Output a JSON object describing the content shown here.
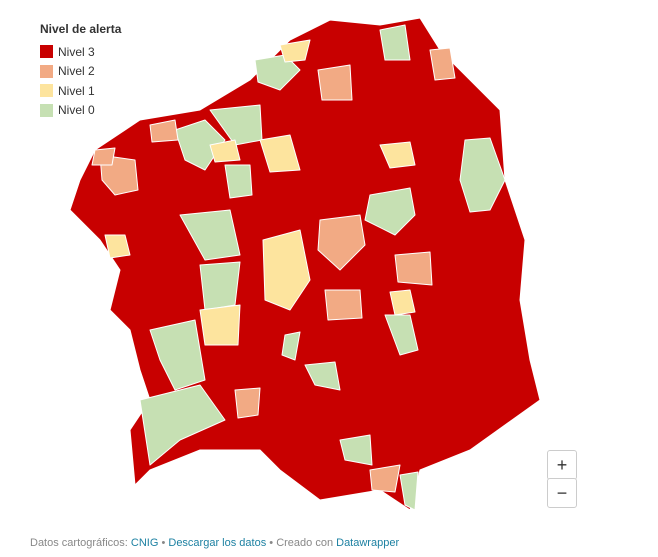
{
  "legend": {
    "title": "Nivel de alerta",
    "items": [
      {
        "label": "Nivel 3",
        "color": "#c80000"
      },
      {
        "label": "Nivel 2",
        "color": "#f2aa84"
      },
      {
        "label": "Nivel 1",
        "color": "#fde49e"
      },
      {
        "label": "Nivel 0",
        "color": "#c6e0b3"
      }
    ]
  },
  "zoom": {
    "in": "+",
    "out": "−"
  },
  "footer": {
    "prefix": "Datos cartográficos:",
    "source": "CNIG",
    "sep1": "•",
    "download": "Descargar los datos",
    "sep2": "•",
    "created": "Creado con",
    "tool": "Datawrapper"
  }
}
